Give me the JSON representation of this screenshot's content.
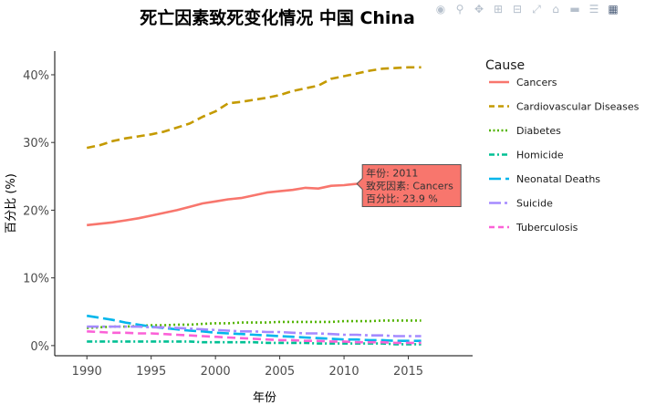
{
  "toolbar": {
    "icons": [
      "camera-icon",
      "zoom-icon",
      "pan-icon",
      "zoom-in-icon",
      "zoom-out-icon",
      "autoscale-icon",
      "reset-axes-icon",
      "spike-lines-icon",
      "compare-icon",
      "plotly-logo-icon"
    ]
  },
  "chart_data": {
    "type": "line",
    "title": "死亡因素致死变化情况 中国 China",
    "xlabel": "年份",
    "ylabel": "百分比 (%)",
    "xlim": [
      1987.5,
      2020
    ],
    "ylim": [
      -1.5,
      43.5
    ],
    "x_ticks": [
      1990,
      1995,
      2000,
      2005,
      2010,
      2015
    ],
    "y_ticks": [
      0,
      10,
      20,
      30,
      40
    ],
    "y_tick_labels": [
      "0%",
      "10%",
      "20%",
      "30%",
      "40%"
    ],
    "legend_title": "Cause",
    "legend_position": "right",
    "grid": false,
    "x": [
      1990,
      1991,
      1992,
      1993,
      1994,
      1995,
      1996,
      1997,
      1998,
      1999,
      2000,
      2001,
      2002,
      2003,
      2004,
      2005,
      2006,
      2007,
      2008,
      2009,
      2010,
      2011,
      2012,
      2013,
      2014,
      2015,
      2016
    ],
    "series": [
      {
        "name": "Cancers",
        "color": "#f8766d",
        "dash": "solid",
        "values": [
          17.8,
          18.0,
          18.2,
          18.5,
          18.8,
          19.2,
          19.6,
          20.0,
          20.5,
          21.0,
          21.3,
          21.6,
          21.8,
          22.2,
          22.6,
          22.8,
          23.0,
          23.3,
          23.2,
          23.6,
          23.7,
          23.9,
          24.2,
          24.6,
          24.8,
          25.0,
          25.2
        ]
      },
      {
        "name": "Cardiovascular Diseases",
        "color": "#c49a00",
        "dash": "dash",
        "values": [
          29.2,
          29.6,
          30.2,
          30.6,
          30.9,
          31.2,
          31.6,
          32.2,
          32.8,
          33.8,
          34.6,
          35.8,
          36.0,
          36.3,
          36.6,
          37.0,
          37.6,
          38.0,
          38.4,
          39.4,
          39.8,
          40.2,
          40.6,
          40.9,
          41.0,
          41.1,
          41.1
        ]
      },
      {
        "name": "Diabetes",
        "color": "#53b400",
        "dash": "dot",
        "values": [
          2.6,
          2.7,
          2.8,
          2.8,
          2.9,
          3.0,
          3.0,
          3.1,
          3.1,
          3.2,
          3.3,
          3.3,
          3.4,
          3.4,
          3.4,
          3.5,
          3.5,
          3.5,
          3.5,
          3.5,
          3.6,
          3.6,
          3.6,
          3.7,
          3.7,
          3.7,
          3.7
        ]
      },
      {
        "name": "Homicide",
        "color": "#00c094",
        "dash": "dashdot",
        "values": [
          0.6,
          0.6,
          0.6,
          0.6,
          0.6,
          0.6,
          0.6,
          0.6,
          0.6,
          0.5,
          0.5,
          0.5,
          0.5,
          0.5,
          0.4,
          0.4,
          0.4,
          0.4,
          0.3,
          0.3,
          0.3,
          0.3,
          0.3,
          0.3,
          0.2,
          0.2,
          0.2
        ]
      },
      {
        "name": "Neonatal Deaths",
        "color": "#00b6eb",
        "dash": "longdash",
        "values": [
          4.4,
          4.1,
          3.8,
          3.4,
          3.1,
          2.8,
          2.6,
          2.4,
          2.2,
          2.1,
          1.9,
          1.8,
          1.7,
          1.6,
          1.5,
          1.4,
          1.3,
          1.2,
          1.1,
          1.0,
          0.9,
          0.9,
          0.8,
          0.8,
          0.7,
          0.7,
          0.7
        ]
      },
      {
        "name": "Suicide",
        "color": "#a58aff",
        "dash": "longdashdot",
        "values": [
          2.8,
          2.8,
          2.8,
          2.8,
          2.8,
          2.7,
          2.7,
          2.6,
          2.5,
          2.4,
          2.3,
          2.2,
          2.1,
          2.1,
          2.0,
          2.0,
          1.9,
          1.8,
          1.8,
          1.7,
          1.6,
          1.6,
          1.5,
          1.5,
          1.4,
          1.4,
          1.4
        ]
      },
      {
        "name": "Tuberculosis",
        "color": "#fb61d7",
        "dash": "dash",
        "values": [
          2.1,
          2.0,
          1.9,
          1.9,
          1.8,
          1.8,
          1.7,
          1.6,
          1.5,
          1.4,
          1.3,
          1.2,
          1.1,
          1.0,
          0.9,
          0.8,
          0.8,
          0.7,
          0.7,
          0.6,
          0.6,
          0.5,
          0.5,
          0.5,
          0.4,
          0.4,
          0.4
        ]
      }
    ],
    "tooltip": {
      "series": "Cancers",
      "x": 2011,
      "y": 23.9,
      "lines": [
        "年份: 2011",
        "致死因素: Cancers",
        "百分比: 23.9 %"
      ]
    }
  }
}
